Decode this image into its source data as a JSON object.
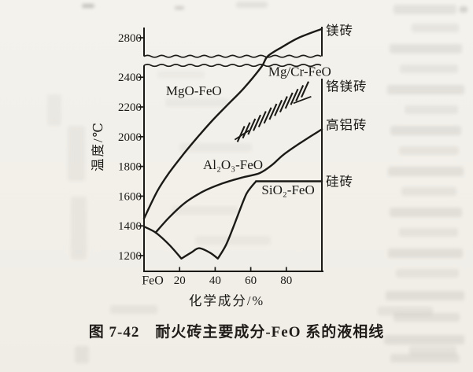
{
  "figure": {
    "caption": "图 7-42　耐火砖主要成分-FeO 系的液相线"
  },
  "chart_data": {
    "type": "line",
    "title": "图 7-42 耐火砖主要成分-FeO 系的液相线",
    "xlabel": "化学成分/%",
    "ylabel": "温度/℃",
    "x_origin_label": "FeO",
    "xlim": [
      0,
      100
    ],
    "ylim": [
      1090,
      2900
    ],
    "x_ticks": [
      20,
      40,
      60,
      80
    ],
    "y_ticks": [
      1200,
      1400,
      1600,
      1800,
      2000,
      2200,
      2400,
      2800
    ],
    "y_axis_break": {
      "from": 2480,
      "to": 2675
    },
    "grid": false,
    "legend": "region labels inside plot, phase endpoint labels on right edge",
    "series": [
      {
        "id": "mgo-feo",
        "name": "MgO-FeO",
        "label_pos": {
          "pct": 28,
          "temp": 2310
        },
        "points": [
          [
            0,
            1450
          ],
          [
            7.5,
            1635
          ],
          [
            14,
            1755
          ],
          [
            22,
            1880
          ],
          [
            30,
            1995
          ],
          [
            38.5,
            2110
          ],
          [
            47,
            2215
          ],
          [
            56,
            2325
          ],
          [
            66,
            2470
          ],
          [
            69.5,
            2675
          ],
          [
            78,
            2740
          ],
          [
            87,
            2800
          ],
          [
            100,
            2860
          ]
        ]
      },
      {
        "id": "al2o3-feo",
        "name": "Al₂O₃-FeO",
        "label_pos": {
          "pct": 50,
          "temp": 1815
        },
        "points": [
          [
            6.5,
            1355
          ],
          [
            14,
            1455
          ],
          [
            23,
            1555
          ],
          [
            33,
            1630
          ],
          [
            44,
            1685
          ],
          [
            55,
            1725
          ],
          [
            65,
            1755
          ],
          [
            72,
            1810
          ],
          [
            78,
            1875
          ],
          [
            85,
            1935
          ],
          [
            92,
            1990
          ],
          [
            100,
            2050
          ]
        ]
      },
      {
        "id": "sio2-feo",
        "name": "SiO₂-FeO",
        "label_pos": {
          "pct": 81,
          "temp": 1645
        },
        "points": [
          [
            0,
            1395
          ],
          [
            6.5,
            1355
          ],
          [
            14,
            1275
          ],
          [
            21,
            1180
          ],
          [
            26.5,
            1220
          ],
          [
            31,
            1250
          ],
          [
            37,
            1220
          ],
          [
            41.5,
            1180
          ],
          [
            46,
            1270
          ],
          [
            50,
            1385
          ],
          [
            54,
            1510
          ],
          [
            57.5,
            1615
          ],
          [
            60.5,
            1665
          ],
          [
            63,
            1700
          ],
          [
            67,
            1700
          ],
          [
            100,
            1700
          ]
        ],
        "corners": [
          3,
          7,
          13
        ]
      }
    ],
    "mgcr_band": {
      "id": "mgcr-feo",
      "name": "Mg/Cr-FeO",
      "label_pos": {
        "pct": 87.5,
        "temp": 2440
      },
      "bottom_edge": [
        [
          52.5,
          1965
        ],
        [
          88.5,
          2265
        ]
      ],
      "stroke_count": 13,
      "stroke_delta": [
        4,
        106
      ],
      "end_marks": [
        [
          [
            51,
            1980
          ],
          [
            59,
            2042
          ]
        ],
        [
          [
            84,
            2225
          ],
          [
            94,
            2270
          ]
        ]
      ]
    },
    "right_labels": [
      {
        "text": "镁砖",
        "temp": 2850
      },
      {
        "text": "铬镁砖",
        "temp": 2340
      },
      {
        "text": "高铝砖",
        "temp": 2080
      },
      {
        "text": "硅砖",
        "temp": 1700
      }
    ]
  }
}
